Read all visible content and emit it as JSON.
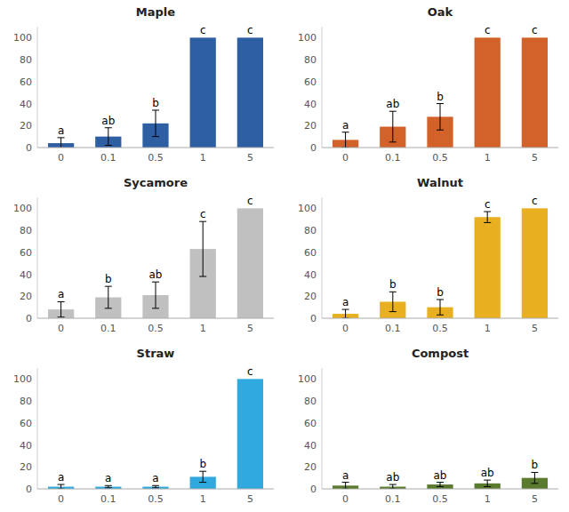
{
  "chart_data": [
    {
      "type": "bar",
      "title": "Maple",
      "color": "#2E5FA3",
      "categories": [
        "0",
        "0.1",
        "0.5",
        "1",
        "5"
      ],
      "values": [
        4,
        10,
        22,
        100,
        100
      ],
      "errors": [
        5,
        8,
        12,
        0,
        0
      ],
      "annotations": [
        "a",
        "ab",
        "b",
        "c",
        "c"
      ],
      "ylim": [
        0,
        110
      ],
      "yticks": [
        0,
        20,
        40,
        60,
        80,
        100
      ],
      "grid": false
    },
    {
      "type": "bar",
      "title": "Oak",
      "color": "#D2622A",
      "categories": [
        "0",
        "0.1",
        "0.5",
        "1",
        "5"
      ],
      "values": [
        7,
        19,
        28,
        100,
        100
      ],
      "errors": [
        7,
        14,
        12,
        0,
        0
      ],
      "annotations": [
        "a",
        "ab",
        "b",
        "c",
        "c"
      ],
      "ylim": [
        0,
        110
      ],
      "yticks": [
        0,
        20,
        40,
        60,
        80,
        100
      ],
      "grid": false
    },
    {
      "type": "bar",
      "title": "Sycamore",
      "color": "#C0C0C0",
      "categories": [
        "0",
        "0.1",
        "0.5",
        "1",
        "5"
      ],
      "values": [
        8,
        19,
        21,
        63,
        100
      ],
      "errors": [
        7,
        10,
        12,
        25,
        0
      ],
      "annotations": [
        "a",
        "b",
        "ab",
        "c",
        "c"
      ],
      "ylim": [
        0,
        110
      ],
      "yticks": [
        0,
        20,
        40,
        60,
        80,
        100
      ],
      "grid": false
    },
    {
      "type": "bar",
      "title": "Walnut",
      "color": "#E8B020",
      "categories": [
        "0",
        "0.1",
        "0.5",
        "1",
        "5"
      ],
      "values": [
        4,
        15,
        10,
        92,
        100
      ],
      "errors": [
        4,
        9,
        7,
        5,
        0
      ],
      "annotations": [
        "a",
        "b",
        "b",
        "c",
        "c"
      ],
      "ylim": [
        0,
        110
      ],
      "yticks": [
        0,
        20,
        40,
        60,
        80,
        100
      ],
      "grid": false
    },
    {
      "type": "bar",
      "title": "Straw",
      "color": "#30AADE",
      "categories": [
        "0",
        "0.1",
        "0.5",
        "1",
        "5"
      ],
      "values": [
        2,
        2,
        2,
        11,
        100
      ],
      "errors": [
        2,
        1,
        1,
        5,
        0
      ],
      "annotations": [
        "a",
        "a",
        "a",
        "b",
        "c"
      ],
      "ylim": [
        0,
        110
      ],
      "yticks": [
        0,
        20,
        40,
        60,
        80,
        100
      ],
      "grid": false
    },
    {
      "type": "bar",
      "title": "Compost",
      "color": "#5A7A2E",
      "categories": [
        "0",
        "0.1",
        "0.5",
        "1",
        "5"
      ],
      "values": [
        3,
        2,
        4,
        5,
        10
      ],
      "errors": [
        3,
        2,
        2,
        3,
        5
      ],
      "annotations": [
        "a",
        "ab",
        "ab",
        "ab",
        "b"
      ],
      "ylim": [
        0,
        110
      ],
      "yticks": [
        0,
        20,
        40,
        60,
        80,
        100
      ],
      "grid": false
    }
  ]
}
